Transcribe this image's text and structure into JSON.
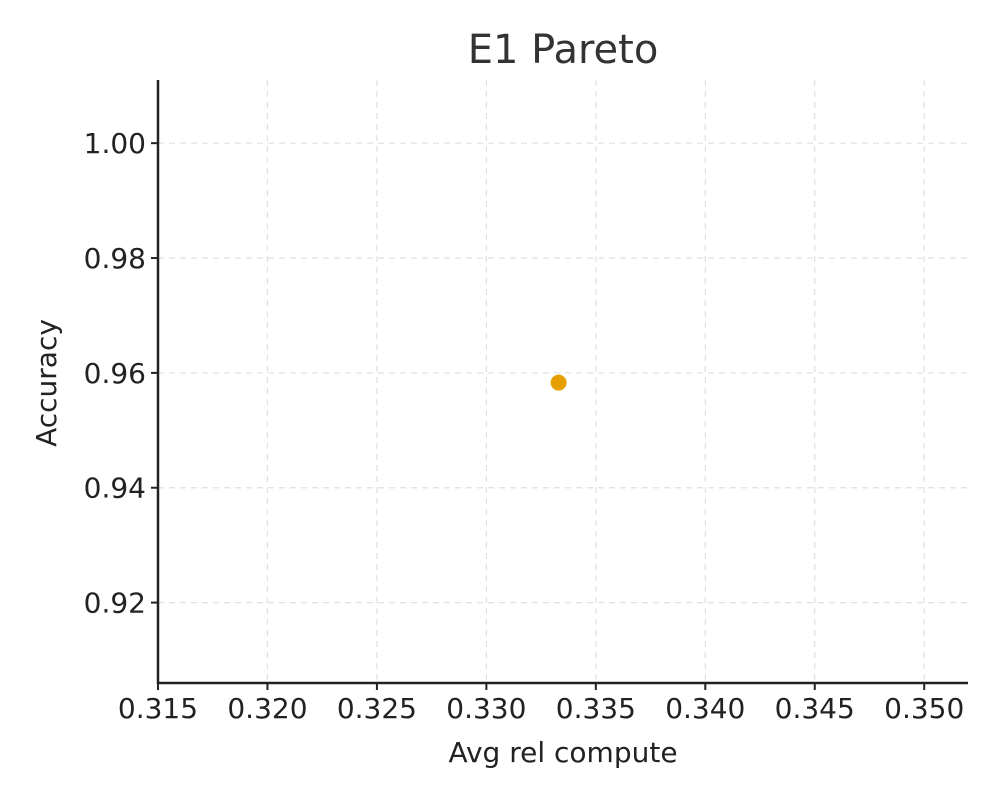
{
  "chart_data": {
    "type": "scatter",
    "title": "E1 Pareto",
    "xlabel": "Avg rel compute",
    "ylabel": "Accuracy",
    "xlim": [
      0.315,
      0.352
    ],
    "ylim": [
      0.906,
      1.011
    ],
    "xticks": [
      "0.315",
      "0.320",
      "0.325",
      "0.330",
      "0.335",
      "0.340",
      "0.345",
      "0.350"
    ],
    "yticks": [
      "0.92",
      "0.94",
      "0.96",
      "0.98",
      "1.00"
    ],
    "grid": true,
    "series": [
      {
        "color": "#E69F00",
        "points": [
          {
            "x": 0.3333,
            "y": 0.9583
          }
        ]
      }
    ]
  }
}
